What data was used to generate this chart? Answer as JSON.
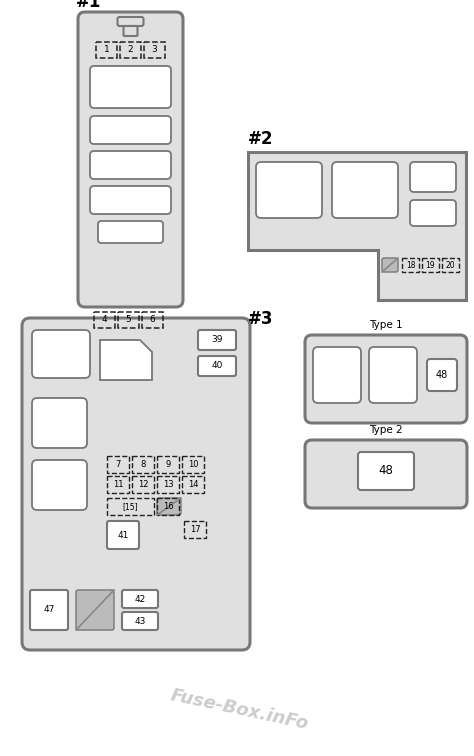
{
  "bg_color": "#ffffff",
  "panel_color": "#e0e0e0",
  "panel_border_color": "#777777",
  "box_color": "#ffffff",
  "box_border_color": "#777777",
  "dashed_border_color": "#222222",
  "label_fontsize": 6.5,
  "heading_fontsize": 12,
  "watermark_text": "Fuse-Box.inFo",
  "watermark_color": "#cccccc",
  "watermark_fontsize": 13
}
